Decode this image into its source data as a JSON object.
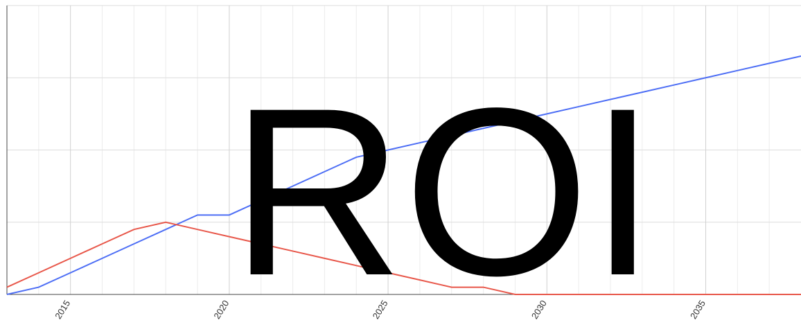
{
  "chart_data": {
    "type": "line",
    "overlay_text": "ROI",
    "x": [
      2013,
      2014,
      2015,
      2016,
      2017,
      2018,
      2019,
      2020,
      2021,
      2022,
      2023,
      2024,
      2025,
      2026,
      2027,
      2028,
      2029,
      2030,
      2031,
      2032,
      2033,
      2034,
      2035,
      2036,
      2037,
      2038
    ],
    "series": [
      {
        "color": "#4d6ef5",
        "values": [
          0,
          0.1,
          0.3,
          0.5,
          0.7,
          0.9,
          1.1,
          1.1,
          1.3,
          1.5,
          1.7,
          1.9,
          2.0,
          2.1,
          2.2,
          2.3,
          2.4,
          2.5,
          2.6,
          2.7,
          2.8,
          2.9,
          3.0,
          3.1,
          3.2,
          3.3
        ]
      },
      {
        "color": "#e8574a",
        "values": [
          0.1,
          0.3,
          0.5,
          0.7,
          0.9,
          1.0,
          0.9,
          0.8,
          0.7,
          0.6,
          0.5,
          0.4,
          0.3,
          0.2,
          0.1,
          0.1,
          0,
          0,
          0,
          0,
          0,
          0,
          0,
          0,
          0,
          0
        ]
      }
    ],
    "xlim": [
      2013,
      2038
    ],
    "xticks": [
      2015,
      2020,
      2025,
      2030,
      2035
    ],
    "xminorticks": [
      2014,
      2016,
      2017,
      2018,
      2019,
      2021,
      2022,
      2023,
      2024,
      2026,
      2027,
      2028,
      2029,
      2031,
      2032,
      2033,
      2034,
      2036,
      2037
    ],
    "ylim": [
      0,
      4
    ],
    "yticks": [
      0,
      1,
      2,
      3,
      4
    ],
    "grid": true
  }
}
